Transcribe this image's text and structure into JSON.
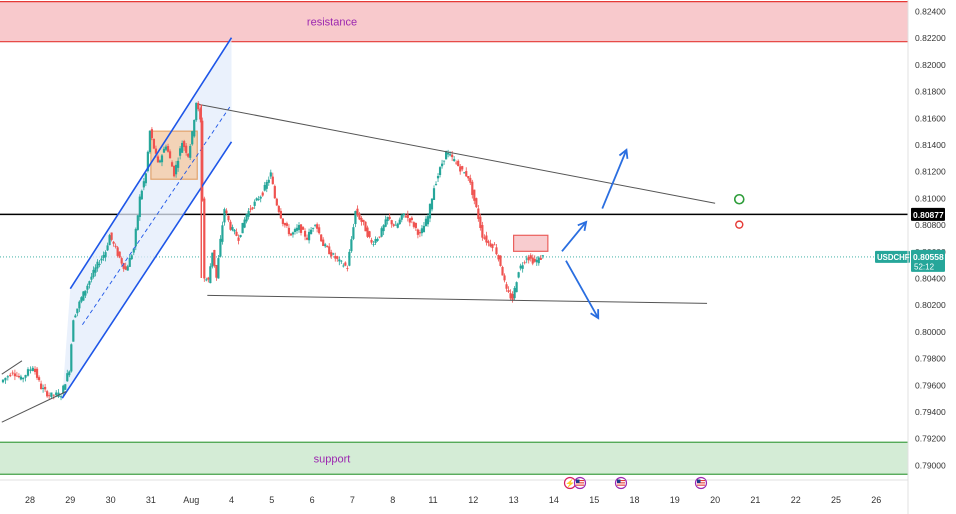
{
  "chart_data": {
    "type": "candlestick",
    "symbol": "USDCHF",
    "last_price": "0.80558",
    "countdown": "52:12",
    "level_label": "0.80877",
    "level_value": 0.80877,
    "zones": [
      {
        "name": "resistance",
        "label": "resistance",
        "from": 0.8217,
        "to": 0.8247,
        "color": "#f8c9cc",
        "line": "#e53935"
      },
      {
        "name": "support",
        "label": "support",
        "from": 0.7893,
        "to": 0.7917,
        "color": "#d4ecd6",
        "line": "#43a047"
      }
    ],
    "y_ticks": [
      "0.82400",
      "0.82200",
      "0.82000",
      "0.81800",
      "0.81600",
      "0.81400",
      "0.81200",
      "0.81000",
      "0.80800",
      "0.80600",
      "0.80400",
      "0.80200",
      "0.80000",
      "0.79800",
      "0.79600",
      "0.79400",
      "0.79200",
      "0.79000"
    ],
    "y_tick_values": [
      0.824,
      0.822,
      0.82,
      0.818,
      0.816,
      0.814,
      0.812,
      0.81,
      0.808,
      0.806,
      0.804,
      0.802,
      0.8,
      0.798,
      0.796,
      0.794,
      0.792,
      0.79
    ],
    "x_ticks": [
      {
        "label": "28",
        "t": 0
      },
      {
        "label": "29",
        "t": 1
      },
      {
        "label": "30",
        "t": 2
      },
      {
        "label": "31",
        "t": 3
      },
      {
        "label": "Aug",
        "t": 4
      },
      {
        "label": "4",
        "t": 5
      },
      {
        "label": "5",
        "t": 6
      },
      {
        "label": "6",
        "t": 7
      },
      {
        "label": "7",
        "t": 8
      },
      {
        "label": "8",
        "t": 9
      },
      {
        "label": "11",
        "t": 10
      },
      {
        "label": "12",
        "t": 11
      },
      {
        "label": "13",
        "t": 12
      },
      {
        "label": "14",
        "t": 13
      },
      {
        "label": "15",
        "t": 14
      },
      {
        "label": "18",
        "t": 15
      },
      {
        "label": "19",
        "t": 16
      },
      {
        "label": "20",
        "t": 17
      },
      {
        "label": "21",
        "t": 18
      },
      {
        "label": "22",
        "t": 19
      },
      {
        "label": "25",
        "t": 20
      },
      {
        "label": "26",
        "t": 21
      }
    ],
    "price_path": [
      [
        -0.7,
        0.7962
      ],
      [
        -0.4,
        0.797
      ],
      [
        -0.2,
        0.7964
      ],
      [
        0.1,
        0.7974
      ],
      [
        0.3,
        0.7958
      ],
      [
        0.5,
        0.7952
      ],
      [
        0.8,
        0.7953
      ],
      [
        1.0,
        0.7972
      ],
      [
        1.1,
        0.801
      ],
      [
        1.3,
        0.8025
      ],
      [
        1.5,
        0.8038
      ],
      [
        1.7,
        0.805
      ],
      [
        1.9,
        0.806
      ],
      [
        2.0,
        0.8072
      ],
      [
        2.2,
        0.8058
      ],
      [
        2.4,
        0.8046
      ],
      [
        2.6,
        0.8062
      ],
      [
        2.75,
        0.81
      ],
      [
        2.9,
        0.8118
      ],
      [
        3.0,
        0.815
      ],
      [
        3.2,
        0.8125
      ],
      [
        3.4,
        0.814
      ],
      [
        3.6,
        0.8118
      ],
      [
        3.8,
        0.8142
      ],
      [
        3.95,
        0.8132
      ],
      [
        4.05,
        0.8148
      ],
      [
        4.15,
        0.8172
      ],
      [
        4.25,
        0.8158
      ],
      [
        4.35,
        0.804
      ],
      [
        4.45,
        0.8038
      ],
      [
        4.55,
        0.806
      ],
      [
        4.65,
        0.804
      ],
      [
        4.75,
        0.8068
      ],
      [
        4.85,
        0.8092
      ],
      [
        5.0,
        0.8078
      ],
      [
        5.2,
        0.807
      ],
      [
        5.4,
        0.8088
      ],
      [
        5.6,
        0.8096
      ],
      [
        5.8,
        0.8104
      ],
      [
        6.0,
        0.8118
      ],
      [
        6.1,
        0.81
      ],
      [
        6.3,
        0.8082
      ],
      [
        6.5,
        0.8072
      ],
      [
        6.7,
        0.8078
      ],
      [
        6.9,
        0.807
      ],
      [
        7.1,
        0.8082
      ],
      [
        7.3,
        0.8065
      ],
      [
        7.5,
        0.8058
      ],
      [
        7.7,
        0.8052
      ],
      [
        7.9,
        0.8048
      ],
      [
        8.1,
        0.809
      ],
      [
        8.3,
        0.808
      ],
      [
        8.5,
        0.8066
      ],
      [
        8.7,
        0.8072
      ],
      [
        8.9,
        0.8085
      ],
      [
        9.1,
        0.8078
      ],
      [
        9.3,
        0.8088
      ],
      [
        9.5,
        0.8082
      ],
      [
        9.7,
        0.8072
      ],
      [
        9.9,
        0.8086
      ],
      [
        10.05,
        0.8108
      ],
      [
        10.25,
        0.8126
      ],
      [
        10.35,
        0.8134
      ],
      [
        10.55,
        0.8128
      ],
      [
        10.75,
        0.812
      ],
      [
        10.9,
        0.8116
      ],
      [
        11.0,
        0.8104
      ],
      [
        11.1,
        0.8092
      ],
      [
        11.25,
        0.8072
      ],
      [
        11.4,
        0.8066
      ],
      [
        11.55,
        0.8064
      ],
      [
        11.7,
        0.805
      ],
      [
        11.85,
        0.803
      ],
      [
        12.0,
        0.8024
      ],
      [
        12.15,
        0.8046
      ],
      [
        12.35,
        0.8056
      ],
      [
        12.55,
        0.8052
      ],
      [
        12.75,
        0.8056
      ]
    ],
    "annotations": {
      "channel_upper": [
        [
          1.0,
          0.8032
        ],
        [
          5.0,
          0.822
        ]
      ],
      "channel_lower": [
        [
          0.8,
          0.795
        ],
        [
          5.0,
          0.8142
        ]
      ],
      "channel_mid": [
        [
          1.3,
          0.8005
        ],
        [
          5.0,
          0.817
        ]
      ],
      "triangle_upper": [
        [
          4.2,
          0.817
        ],
        [
          17.0,
          0.8096
        ]
      ],
      "triangle_lower": [
        [
          4.4,
          0.8027
        ],
        [
          16.8,
          0.8021
        ]
      ],
      "left_line_upper": [
        [
          -0.7,
          0.7968
        ],
        [
          -0.2,
          0.7978
        ]
      ],
      "left_line_lower": [
        [
          -0.7,
          0.7932
        ],
        [
          0.9,
          0.7955
        ]
      ],
      "consolidation_box": [
        [
          3.0,
          0.815
        ],
        [
          4.15,
          0.8114
        ]
      ],
      "supply_box": [
        [
          12.0,
          0.8072
        ],
        [
          12.85,
          0.806
        ]
      ],
      "drop_line": [
        [
          4.25,
          0.817
        ],
        [
          4.25,
          0.804
        ]
      ],
      "arrow_up_first": [
        [
          13.2,
          0.806
        ],
        [
          13.8,
          0.8082
        ]
      ],
      "arrow_up_second": [
        [
          14.2,
          0.8092
        ],
        [
          14.8,
          0.8136
        ]
      ],
      "arrow_down": [
        [
          13.3,
          0.8053
        ],
        [
          14.1,
          0.801
        ]
      ],
      "green_circle": [
        17.6,
        0.8099
      ],
      "red_circle": [
        17.6,
        0.808
      ]
    },
    "colors": {
      "up": "#26a69a",
      "down": "#ef5350",
      "channel": "#1e56e8",
      "channel_fill": "#e3ecfb",
      "triangle": "#555555",
      "box_fill": "#f6c9a0",
      "box_line": "#e08a3c",
      "supply_fill": "#f7c0c4",
      "supply_line": "#e53935",
      "arrow": "#2a6ee0",
      "level_line": "#000000",
      "price_tag": "#26a69a",
      "zone_text": "#9c27b0"
    }
  },
  "events": [
    "flash-usd-icon",
    "usd-icon",
    "usd-icon"
  ]
}
